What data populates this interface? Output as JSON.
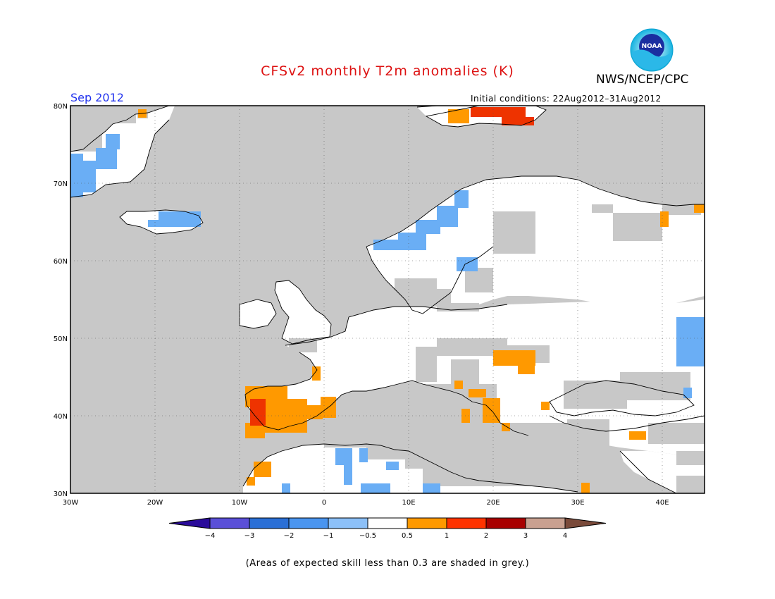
{
  "header": {
    "title": "CFSv2 monthly T2m anomalies (K)",
    "agency": "NWS/NCEP/CPC",
    "month": "Sep 2012",
    "initial_conditions": "Initial conditions: 22Aug2012–31Aug2012",
    "logo_text": "NOAA"
  },
  "map": {
    "lat_range": [
      30,
      80
    ],
    "lon_range": [
      -30,
      45
    ],
    "lat_labels": [
      "80N",
      "70N",
      "60N",
      "50N",
      "40N",
      "30N"
    ],
    "lon_labels": [
      "30W",
      "20W",
      "10W",
      "0",
      "10E",
      "20E",
      "30E",
      "40E"
    ]
  },
  "legend": {
    "ticks": [
      "−4",
      "−3",
      "−2",
      "−1",
      "−0.5",
      "0.5",
      "1",
      "2",
      "3",
      "4"
    ],
    "colors": [
      "#2a0b9a",
      "#5a4fd8",
      "#2a6fd6",
      "#4a95f0",
      "#8cc0f8",
      "#ffffff",
      "#ff9900",
      "#ff3300",
      "#a80000",
      "#c9a090",
      "#7a4a3a"
    ]
  },
  "footnote": "(Areas of expected skill less than 0.3 are shaded in grey.)"
}
